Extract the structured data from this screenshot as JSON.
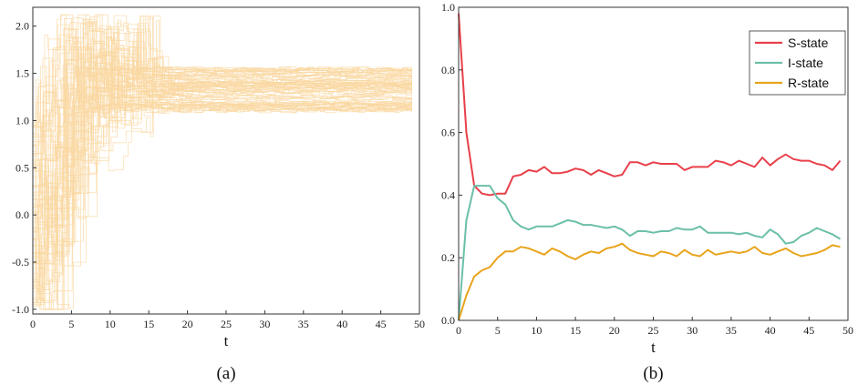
{
  "charts": {
    "a": {
      "panel_label": "(a)",
      "xlabel": "t",
      "xlim": [
        0,
        50
      ],
      "ylim": [
        -1.05,
        2.2
      ],
      "xticks": [
        "0",
        "5",
        "10",
        "15",
        "20",
        "25",
        "30",
        "35",
        "40",
        "45",
        "50"
      ],
      "yticks": [
        "-1.0",
        "-0.5",
        "0.0",
        "0.5",
        "1.0",
        "1.5",
        "2.0"
      ],
      "color": "#FAD7A0"
    },
    "b": {
      "panel_label": "(b)",
      "xlabel": "t",
      "xlim": [
        0,
        50
      ],
      "ylim": [
        0,
        1.0
      ],
      "xticks": [
        "0",
        "5",
        "10",
        "15",
        "20",
        "25",
        "30",
        "35",
        "40",
        "45",
        "50"
      ],
      "yticks": [
        "0.0",
        "0.2",
        "0.4",
        "0.6",
        "0.8",
        "1.0"
      ],
      "legend": [
        "S-state",
        "I-state",
        "R-state"
      ]
    }
  },
  "chart_data": [
    {
      "type": "line",
      "panel": "(a)",
      "description_values": "Many trajectories starting in [-1,1], oscillating with spikes up to ~2.1 between t=4 and t=16, converging to 1.1–1.55 after t≈22 through t=49.",
      "x": [
        0,
        49
      ],
      "converged_range": [
        1.1,
        1.55
      ],
      "initial_range": [
        -1.0,
        1.0
      ],
      "peak_max": 2.12,
      "trajectory_count": 80,
      "xlim": [
        0,
        50
      ],
      "ylim": [
        -1.05,
        2.2
      ],
      "grid": false
    },
    {
      "type": "line",
      "panel": "(b)",
      "x": [
        0,
        1,
        2,
        3,
        4,
        5,
        6,
        7,
        8,
        9,
        10,
        11,
        12,
        13,
        14,
        15,
        16,
        17,
        18,
        19,
        20,
        21,
        22,
        23,
        24,
        25,
        26,
        27,
        28,
        29,
        30,
        31,
        32,
        33,
        34,
        35,
        36,
        37,
        38,
        39,
        40,
        41,
        42,
        43,
        44,
        45,
        46,
        47,
        48,
        49
      ],
      "series": [
        {
          "name": "S-state",
          "color": "#E8404A",
          "values": [
            0.98,
            0.6,
            0.43,
            0.405,
            0.4,
            0.405,
            0.405,
            0.46,
            0.465,
            0.48,
            0.475,
            0.49,
            0.47,
            0.47,
            0.475,
            0.485,
            0.48,
            0.465,
            0.48,
            0.47,
            0.46,
            0.465,
            0.505,
            0.505,
            0.495,
            0.505,
            0.5,
            0.5,
            0.5,
            0.48,
            0.49,
            0.49,
            0.49,
            0.51,
            0.505,
            0.495,
            0.51,
            0.5,
            0.49,
            0.52,
            0.495,
            0.515,
            0.53,
            0.515,
            0.51,
            0.51,
            0.5,
            0.495,
            0.48,
            0.51
          ]
        },
        {
          "name": "I-state",
          "color": "#6BBFA8",
          "values": [
            0.0,
            0.32,
            0.43,
            0.43,
            0.43,
            0.39,
            0.37,
            0.32,
            0.3,
            0.29,
            0.3,
            0.3,
            0.3,
            0.31,
            0.32,
            0.315,
            0.305,
            0.305,
            0.3,
            0.295,
            0.3,
            0.29,
            0.27,
            0.285,
            0.285,
            0.28,
            0.285,
            0.285,
            0.295,
            0.29,
            0.29,
            0.3,
            0.28,
            0.28,
            0.28,
            0.28,
            0.275,
            0.28,
            0.27,
            0.265,
            0.29,
            0.275,
            0.245,
            0.25,
            0.27,
            0.28,
            0.295,
            0.285,
            0.275,
            0.26
          ]
        },
        {
          "name": "R-state",
          "color": "#E8A41C",
          "values": [
            0.0,
            0.08,
            0.14,
            0.16,
            0.17,
            0.2,
            0.22,
            0.22,
            0.235,
            0.23,
            0.22,
            0.21,
            0.23,
            0.22,
            0.205,
            0.195,
            0.21,
            0.22,
            0.215,
            0.23,
            0.235,
            0.245,
            0.225,
            0.215,
            0.21,
            0.205,
            0.22,
            0.215,
            0.205,
            0.225,
            0.21,
            0.205,
            0.225,
            0.21,
            0.215,
            0.22,
            0.215,
            0.22,
            0.235,
            0.215,
            0.21,
            0.22,
            0.23,
            0.215,
            0.205,
            0.21,
            0.215,
            0.225,
            0.24,
            0.235
          ]
        }
      ],
      "xlim": [
        0,
        50
      ],
      "ylim": [
        0,
        1.0
      ],
      "legend_position": "top-right",
      "grid": false
    }
  ]
}
